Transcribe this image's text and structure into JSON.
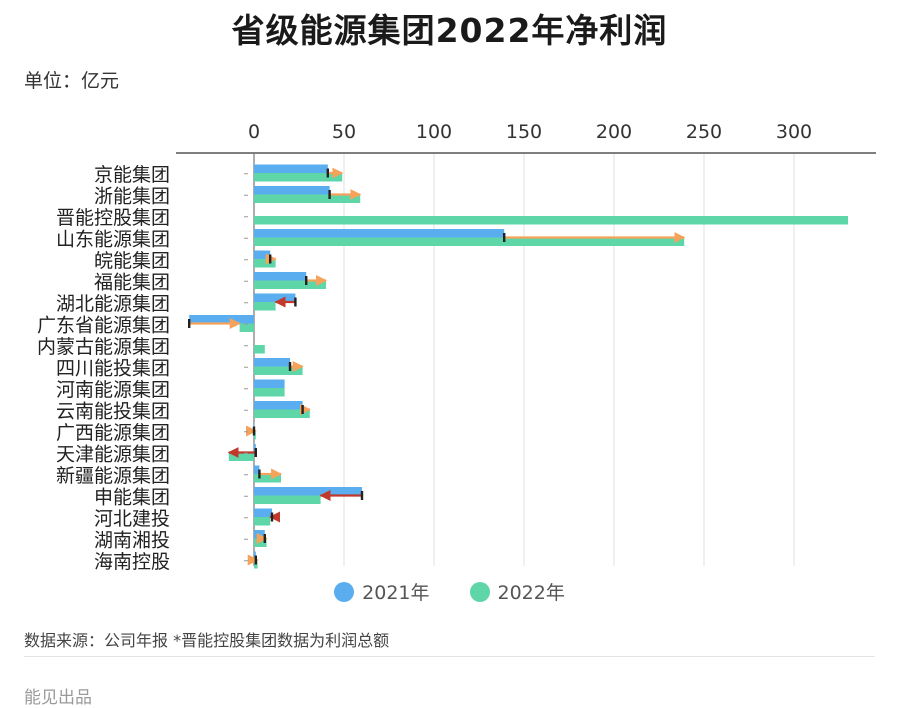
{
  "title": "省级能源集团2022年净利润",
  "unit_label": "单位：亿元",
  "source_note": "数据来源：公司年报 *晋能控股集团数据为利润总额",
  "brand": "能见出品",
  "colors": {
    "2021": "#5aaef0",
    "2022": "#5fd6a8",
    "increase_arrow": "#f5a25a",
    "decrease_arrow": "#c0392b",
    "cap": "#222222"
  },
  "legend": [
    {
      "label": "2021年",
      "color": "#5aaef0"
    },
    {
      "label": "2022年",
      "color": "#5fd6a8"
    }
  ],
  "chart_data": {
    "type": "bar",
    "orientation": "horizontal",
    "title": "省级能源集团2022年净利润",
    "xlim": [
      -36,
      335
    ],
    "x_ticks": [
      0,
      50,
      100,
      150,
      200,
      250,
      300
    ],
    "grid": true,
    "legend_position": "bottom",
    "categories": [
      "京能集团",
      "浙能集团",
      "晋能控股集团",
      "山东能源集团",
      "皖能集团",
      "福能集团",
      "湖北能源集团",
      "广东省能源集团",
      "内蒙古能源集团",
      "四川能投集团",
      "河南能源集团",
      "云南能投集团",
      "广西能源集团",
      "天津能源集团",
      "新疆能源集团",
      "申能集团",
      "河北建投",
      "湖南湘投",
      "海南控股"
    ],
    "series": [
      {
        "name": "2021年",
        "values": [
          41,
          42,
          null,
          139,
          9,
          29,
          23,
          -36,
          null,
          20,
          17,
          27,
          0,
          1,
          3,
          60,
          10,
          6,
          1
        ]
      },
      {
        "name": "2022年",
        "values": [
          49,
          59,
          330,
          239,
          12,
          40,
          12,
          -8,
          6,
          27,
          17,
          31,
          1,
          -14,
          15,
          37,
          9,
          7,
          2
        ]
      }
    ]
  }
}
